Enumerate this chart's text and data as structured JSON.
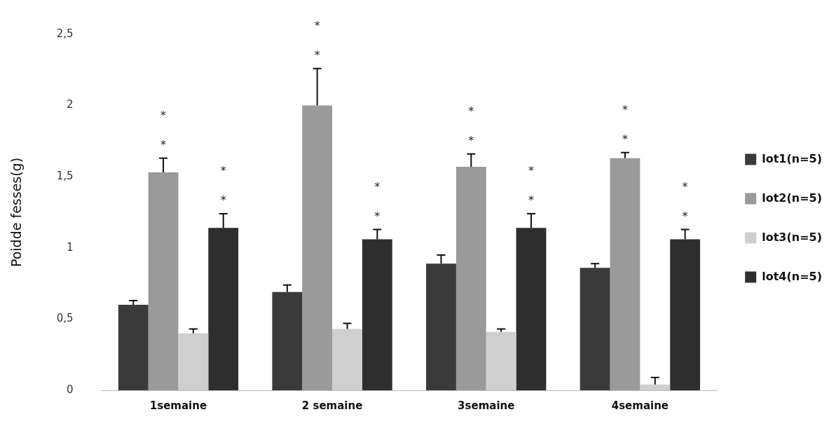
{
  "chart_data": {
    "type": "bar",
    "ylabel": "Poidde fesses(g)",
    "categories": [
      "1semaine",
      "2 semaine",
      "3semaine",
      "4semaine"
    ],
    "series": [
      {
        "name": "lot1(n=5)",
        "color": "#3a3a3a",
        "values": [
          0.6,
          0.69,
          0.89,
          0.86
        ],
        "errors": [
          [
            0.6,
            0.63
          ],
          [
            0.69,
            0.74
          ],
          [
            0.89,
            0.95
          ],
          [
            0.86,
            0.89
          ]
        ]
      },
      {
        "name": "lot2(n=5)",
        "color": "#9a9a9a",
        "values": [
          1.53,
          2.0,
          1.57,
          1.63
        ],
        "errors": [
          [
            1.53,
            1.63
          ],
          [
            2.0,
            2.26
          ],
          [
            1.57,
            1.66
          ],
          [
            1.63,
            1.67
          ]
        ]
      },
      {
        "name": "lot3(n=5)",
        "color": "#cfcfcf",
        "values": [
          0.4,
          0.43,
          0.41,
          0.04
        ],
        "errors": [
          [
            0.4,
            0.43
          ],
          [
            0.43,
            0.47
          ],
          [
            0.41,
            0.43
          ],
          [
            0.04,
            0.09
          ]
        ]
      },
      {
        "name": "lot4(n=5)",
        "color": "#2e2e2e",
        "values": [
          1.14,
          1.06,
          1.14,
          1.06
        ],
        "errors": [
          [
            1.14,
            1.24
          ],
          [
            1.06,
            1.13
          ],
          [
            1.14,
            1.24
          ],
          [
            1.06,
            1.13
          ]
        ]
      }
    ],
    "ylim": [
      0,
      2.5
    ],
    "yticks": [
      0,
      {
        "value": 0.5,
        "label": "0,5"
      },
      1,
      {
        "value": 1.5,
        "label": "1,5"
      },
      2,
      {
        "value": 2.5,
        "label": "2,5"
      }
    ],
    "grid": false,
    "legend": "right",
    "annotations": [
      "*",
      "*",
      "*",
      "*",
      "*",
      "*",
      "*",
      "*",
      "*",
      "*",
      "*",
      "*",
      "*",
      "*",
      "*",
      "*"
    ]
  }
}
